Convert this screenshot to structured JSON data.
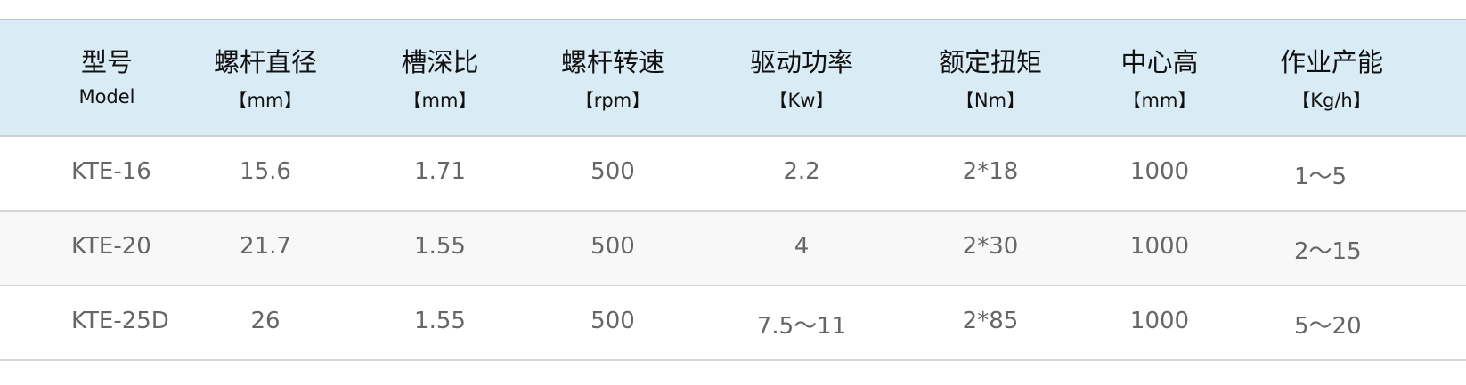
{
  "columns": [
    {
      "title": "型号",
      "unit": "Model"
    },
    {
      "title": "螺杆直径",
      "unit": "【mm】"
    },
    {
      "title": "槽深比",
      "unit": "【mm】"
    },
    {
      "title": "螺杆转速",
      "unit": "【rpm】"
    },
    {
      "title": "驱动功率",
      "unit": "【Kw】"
    },
    {
      "title": "额定扭矩",
      "unit": "【Nm】"
    },
    {
      "title": "中心高",
      "unit": "【mm】"
    },
    {
      "title": "作业产能",
      "unit": "【Kg/h】"
    }
  ],
  "rows": [
    [
      "KTE-16",
      "15.6",
      "1.71",
      "500",
      "2.2",
      "2*18",
      "1000",
      "1～5"
    ],
    [
      "KTE-20",
      "21.7",
      "1.55",
      "500",
      "4",
      "2*30",
      "1000",
      "2～15"
    ],
    [
      "KTE-25D",
      "26",
      "1.55",
      "500",
      "7.5～11",
      "2*85",
      "1000",
      "5～20"
    ]
  ],
  "colors": {
    "header_bg": "#d9ebf5",
    "alt_row_bg": "#f8f8f8",
    "header_text": "#111111",
    "body_text": "#666666"
  }
}
